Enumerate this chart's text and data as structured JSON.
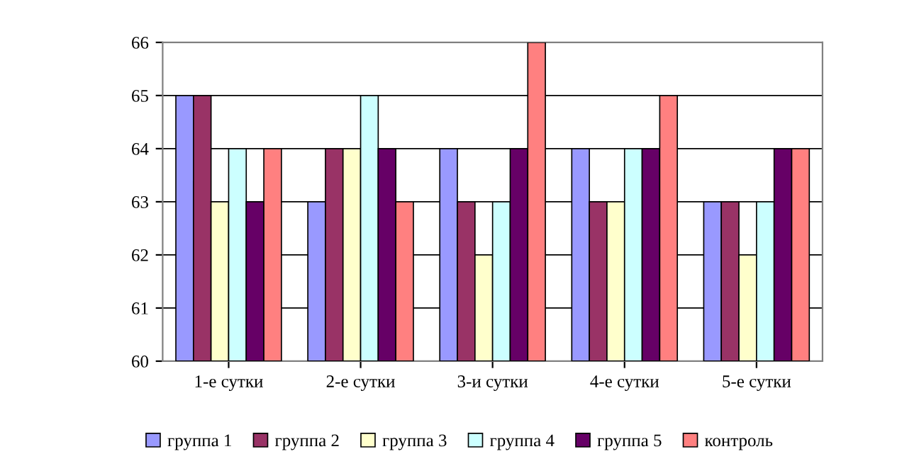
{
  "chart_data": {
    "type": "bar",
    "categories": [
      "1-е сутки",
      "2-е сутки",
      "3-и сутки",
      "4-е сутки",
      "5-е сутки"
    ],
    "series": [
      {
        "name": "группа 1",
        "color": "#9999ff",
        "values": [
          65,
          63,
          64,
          64,
          63
        ]
      },
      {
        "name": "группа 2",
        "color": "#993366",
        "values": [
          65,
          64,
          63,
          63,
          63
        ]
      },
      {
        "name": "группа 3",
        "color": "#ffffcc",
        "values": [
          63,
          64,
          62,
          63,
          62
        ]
      },
      {
        "name": "группа 4",
        "color": "#ccffff",
        "values": [
          64,
          65,
          63,
          64,
          63
        ]
      },
      {
        "name": "группа 5",
        "color": "#660066",
        "values": [
          63,
          64,
          64,
          64,
          64
        ]
      },
      {
        "name": "контроль",
        "color": "#ff8080",
        "values": [
          64,
          63,
          66,
          65,
          64
        ]
      }
    ],
    "ylim": [
      60,
      66
    ],
    "yticks": [
      60,
      61,
      62,
      63,
      64,
      65,
      66
    ],
    "grid": "y",
    "legend": "bottom"
  }
}
